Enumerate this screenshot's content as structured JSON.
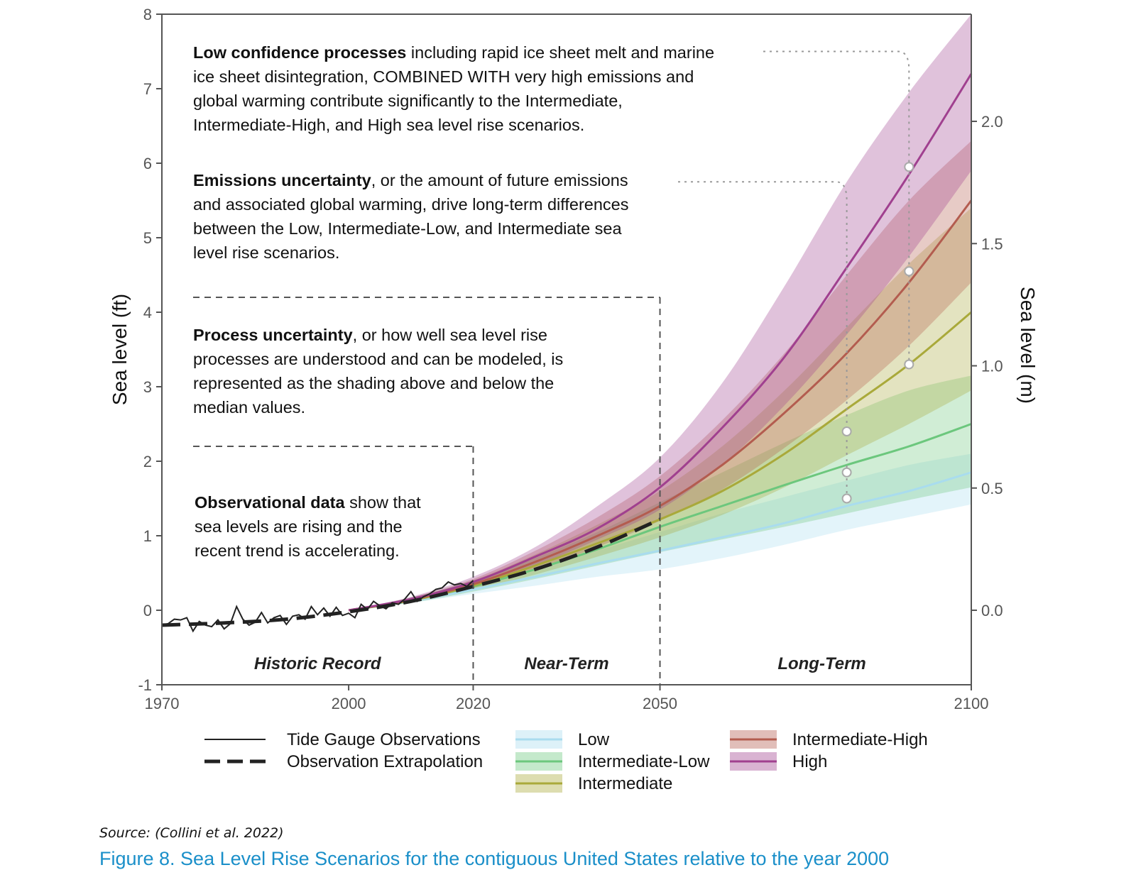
{
  "chart_data": {
    "type": "line",
    "x_axis": {
      "ticks": [
        1970,
        2000,
        2020,
        2050,
        2100
      ],
      "xlim": [
        1970,
        2100
      ]
    },
    "y_left": {
      "label": "Sea level (ft)",
      "ticks": [
        -1,
        0,
        1,
        2,
        3,
        4,
        5,
        6,
        7,
        8
      ],
      "ylim": [
        -1,
        8
      ]
    },
    "y_right": {
      "label": "Sea level (m)",
      "ticks": [
        "0.0",
        "0.5",
        "1.0",
        "1.5",
        "2.0"
      ],
      "tick_values": [
        0.0,
        0.5,
        1.0,
        1.5,
        2.0
      ]
    },
    "grid": false,
    "periods": [
      {
        "label": "Historic Record",
        "x": 1995,
        "divider": 2020
      },
      {
        "label": "Near-Term",
        "x": 2035,
        "divider": 2050
      },
      {
        "label": "Long-Term",
        "x": 2076
      }
    ],
    "observations": {
      "name": "Tide Gauge Observations",
      "x": [
        1970,
        1971,
        1972,
        1973,
        1974,
        1975,
        1976,
        1977,
        1978,
        1979,
        1980,
        1981,
        1982,
        1983,
        1984,
        1985,
        1986,
        1987,
        1988,
        1989,
        1990,
        1991,
        1992,
        1993,
        1994,
        1995,
        1996,
        1997,
        1998,
        1999,
        2000,
        2001,
        2002,
        2003,
        2004,
        2005,
        2006,
        2007,
        2008,
        2009,
        2010,
        2011,
        2012,
        2013,
        2014,
        2015,
        2016,
        2017,
        2018,
        2019,
        2020
      ],
      "y": [
        -0.2,
        -0.18,
        -0.12,
        -0.13,
        -0.1,
        -0.28,
        -0.15,
        -0.2,
        -0.22,
        -0.13,
        -0.25,
        -0.18,
        0.05,
        -0.12,
        -0.2,
        -0.16,
        -0.03,
        -0.17,
        -0.1,
        -0.07,
        -0.19,
        -0.08,
        -0.06,
        -0.12,
        0.05,
        -0.06,
        0.03,
        -0.08,
        0.04,
        -0.07,
        -0.04,
        -0.1,
        0.08,
        0.01,
        0.12,
        0.06,
        0.02,
        0.1,
        0.08,
        0.15,
        0.25,
        0.12,
        0.18,
        0.22,
        0.28,
        0.3,
        0.38,
        0.34,
        0.36,
        0.32,
        0.4
      ]
    },
    "extrapolation": {
      "name": "Observation Extrapolation",
      "x": [
        1970,
        1980,
        1990,
        2000,
        2010,
        2020,
        2030,
        2040,
        2050
      ],
      "y": [
        -0.2,
        -0.17,
        -0.12,
        -0.02,
        0.12,
        0.32,
        0.55,
        0.85,
        1.22
      ]
    },
    "series": [
      {
        "name": "Low",
        "color": "#a9dcee",
        "x": [
          2000,
          2010,
          2020,
          2030,
          2040,
          2050,
          2060,
          2070,
          2080,
          2090,
          2100
        ],
        "y": [
          0.0,
          0.12,
          0.28,
          0.45,
          0.63,
          0.8,
          0.98,
          1.17,
          1.4,
          1.6,
          1.85
        ],
        "lower": [
          0.0,
          0.1,
          0.22,
          0.33,
          0.45,
          0.55,
          0.7,
          0.88,
          1.08,
          1.25,
          1.42
        ],
        "upper": [
          0.0,
          0.15,
          0.33,
          0.55,
          0.8,
          1.05,
          1.3,
          1.52,
          1.74,
          1.95,
          2.1
        ]
      },
      {
        "name": "Intermediate-Low",
        "color": "#6cc77d",
        "x": [
          2000,
          2010,
          2020,
          2030,
          2040,
          2050,
          2060,
          2070,
          2080,
          2090,
          2100
        ],
        "y": [
          0.0,
          0.13,
          0.32,
          0.55,
          0.82,
          1.12,
          1.4,
          1.68,
          1.95,
          2.2,
          2.5
        ],
        "lower": [
          0.0,
          0.1,
          0.25,
          0.42,
          0.6,
          0.78,
          0.95,
          1.12,
          1.3,
          1.48,
          1.65
        ],
        "upper": [
          0.0,
          0.17,
          0.4,
          0.7,
          1.05,
          1.45,
          1.85,
          2.25,
          2.62,
          2.95,
          3.15
        ]
      },
      {
        "name": "Intermediate",
        "color": "#a9a93a",
        "x": [
          2000,
          2010,
          2020,
          2030,
          2040,
          2050,
          2060,
          2070,
          2080,
          2090,
          2100
        ],
        "y": [
          0.0,
          0.13,
          0.33,
          0.6,
          0.9,
          1.22,
          1.6,
          2.1,
          2.7,
          3.3,
          4.0
        ],
        "lower": [
          0.0,
          0.11,
          0.27,
          0.48,
          0.72,
          0.98,
          1.28,
          1.65,
          2.08,
          2.5,
          2.95
        ],
        "upper": [
          0.0,
          0.16,
          0.4,
          0.75,
          1.15,
          1.6,
          2.2,
          2.95,
          3.8,
          4.65,
          5.4
        ]
      },
      {
        "name": "Intermediate-High",
        "color": "#b35c4f",
        "x": [
          2000,
          2010,
          2020,
          2030,
          2040,
          2050,
          2060,
          2070,
          2080,
          2090,
          2100
        ],
        "y": [
          0.0,
          0.14,
          0.35,
          0.65,
          1.0,
          1.4,
          1.95,
          2.65,
          3.45,
          4.4,
          5.5
        ],
        "lower": [
          0.0,
          0.12,
          0.3,
          0.55,
          0.85,
          1.2,
          1.62,
          2.18,
          2.82,
          3.55,
          4.4
        ],
        "upper": [
          0.0,
          0.17,
          0.42,
          0.8,
          1.25,
          1.8,
          2.55,
          3.45,
          4.5,
          5.5,
          6.3
        ]
      },
      {
        "name": "High",
        "color": "#a0408f",
        "x": [
          2000,
          2010,
          2020,
          2030,
          2040,
          2050,
          2060,
          2070,
          2080,
          2090,
          2100
        ],
        "y": [
          0.0,
          0.15,
          0.38,
          0.72,
          1.1,
          1.65,
          2.45,
          3.4,
          4.6,
          5.85,
          7.2
        ],
        "lower": [
          0.0,
          0.12,
          0.32,
          0.6,
          0.95,
          1.35,
          1.95,
          2.75,
          3.7,
          4.75,
          5.9
        ],
        "upper": [
          0.0,
          0.18,
          0.45,
          0.85,
          1.4,
          2.05,
          3.05,
          4.35,
          5.75,
          6.95,
          8.0
        ]
      }
    ],
    "markers": [
      {
        "x": 2080,
        "y": 1.5
      },
      {
        "x": 2080,
        "y": 1.85
      },
      {
        "x": 2080,
        "y": 2.4
      },
      {
        "x": 2090,
        "y": 3.3
      },
      {
        "x": 2090,
        "y": 4.55
      },
      {
        "x": 2090,
        "y": 5.95
      }
    ],
    "legend": {
      "lines": [
        "Tide Gauge Observations",
        "Observation Extrapolation"
      ],
      "col2": [
        "Low",
        "Intermediate-Low",
        "Intermediate"
      ],
      "col3": [
        "Intermediate-High",
        "High"
      ]
    },
    "annotations": [
      {
        "lines": [
          [
            {
              "t": "Low confidence processes",
              "b": true
            },
            {
              "t": " including rapid ice sheet melt and marine"
            }
          ],
          [
            {
              "t": "ice sheet disintegration, COMBINED WITH very high emissions and"
            }
          ],
          [
            {
              "t": "global warming contribute significantly to the Intermediate,"
            }
          ],
          [
            {
              "t": "Intermediate-High, and High sea level rise scenarios."
            }
          ]
        ]
      },
      {
        "lines": [
          [
            {
              "t": "Emissions uncertainty",
              "b": true
            },
            {
              "t": ", or the amount of future emissions"
            }
          ],
          [
            {
              "t": "and associated global warming, drive long-term differences"
            }
          ],
          [
            {
              "t": "between the Low, Intermediate-Low, and Intermediate sea"
            }
          ],
          [
            {
              "t": "level rise scenarios."
            }
          ]
        ]
      },
      {
        "lines": [
          [
            {
              "t": "Process uncertainty",
              "b": true
            },
            {
              "t": ", or how well sea level rise"
            }
          ],
          [
            {
              "t": "processes are understood and can be modeled, is"
            }
          ],
          [
            {
              "t": "represented as the shading above and below the"
            }
          ],
          [
            {
              "t": "median values."
            }
          ]
        ]
      },
      {
        "lines": [
          [
            {
              "t": "Observational data",
              "b": true
            },
            {
              "t": " show that"
            }
          ],
          [
            {
              "t": "sea levels are rising and the"
            }
          ],
          [
            {
              "t": "recent trend is accelerating."
            }
          ]
        ]
      }
    ]
  },
  "source": "Source: (Collini et al. 2022)",
  "caption": "Figure 8. Sea Level Rise Scenarios for the contiguous United States relative to the year 2000"
}
